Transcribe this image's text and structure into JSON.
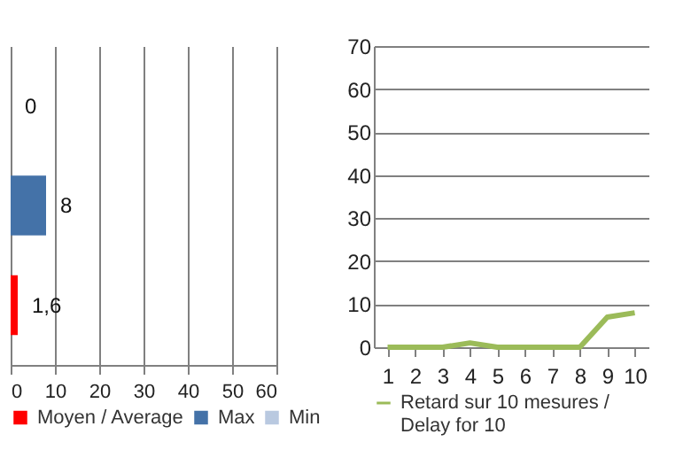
{
  "chart_data": [
    {
      "type": "bar",
      "orientation": "horizontal",
      "categories": [
        null,
        null,
        null
      ],
      "series": [
        {
          "name": "Moyen / Average",
          "color": "#ff0000",
          "values": [
            null,
            null,
            1.6
          ],
          "value_labels": [
            null,
            null,
            "1,6"
          ]
        },
        {
          "name": "Max",
          "color": "#4472a8",
          "values": [
            null,
            8,
            null
          ],
          "value_labels": [
            null,
            "8",
            null
          ]
        },
        {
          "name": "Min",
          "color": "#b9c9e0",
          "values": [
            0,
            null,
            null
          ],
          "value_labels": [
            "0",
            null,
            null
          ]
        }
      ],
      "xlim": [
        0,
        60
      ],
      "xticks": [
        0,
        10,
        20,
        30,
        40,
        50,
        60
      ],
      "grid": "x",
      "legend": "bottom"
    },
    {
      "type": "line",
      "categories": [
        "1",
        "2",
        "3",
        "4",
        "5",
        "6",
        "7",
        "8",
        "9",
        "10"
      ],
      "series": [
        {
          "name": "Retard sur 10 mesures / Delay for 10",
          "color": "#9bbb59",
          "values": [
            0,
            0,
            0,
            1,
            0,
            0,
            0,
            0,
            7,
            8
          ]
        }
      ],
      "ylim": [
        0,
        70
      ],
      "yticks": [
        0,
        10,
        20,
        30,
        40,
        50,
        60,
        70
      ],
      "grid": "y",
      "legend": "bottom"
    }
  ]
}
